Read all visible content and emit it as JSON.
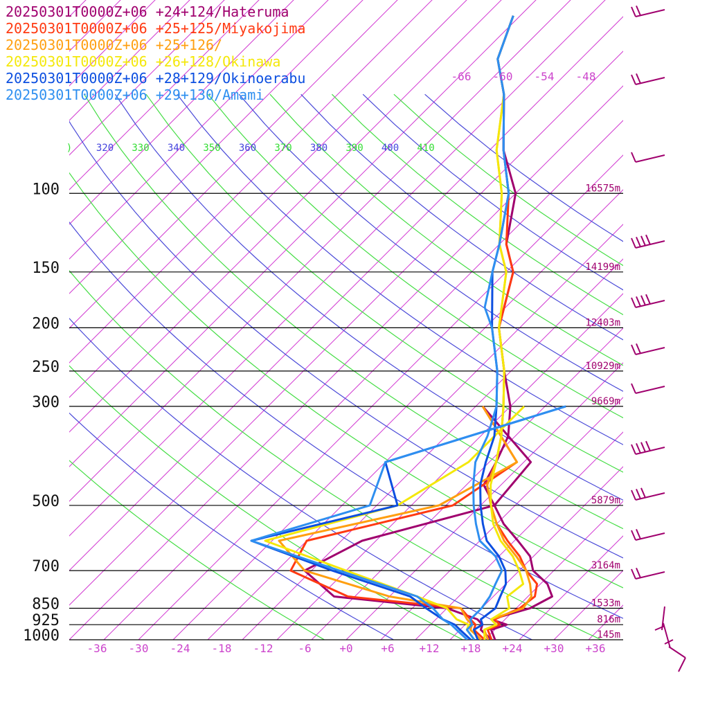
{
  "chart_data": {
    "type": "line",
    "legend": [
      {
        "label": "20250301T0000Z+06 +24+124/Hateruma",
        "color": "#a0006e"
      },
      {
        "label": "20250301T0000Z+06 +25+125/Miyakojima",
        "color": "#ff3a12"
      },
      {
        "label": "20250301T0000Z+06 +25+126/",
        "color": "#ff9f10"
      },
      {
        "label": "20250301T0000Z+06 +26+128/Okinawa",
        "color": "#f4e80a"
      },
      {
        "label": "20250301T0000Z+06 +28+129/Okinoerabu",
        "color": "#0c4fe0"
      },
      {
        "label": "20250301T0000Z+06 +29+130/Amami",
        "color": "#2e8ff0"
      }
    ],
    "pressure_levels": [
      {
        "p": 100,
        "label": "100",
        "height": "16575m"
      },
      {
        "p": 150,
        "label": "150",
        "height": "14199m"
      },
      {
        "p": 200,
        "label": "200",
        "height": "12403m"
      },
      {
        "p": 250,
        "label": "250",
        "height": "10929m"
      },
      {
        "p": 300,
        "label": "300",
        "height": "9669m"
      },
      {
        "p": 500,
        "label": "500",
        "height": "5879m"
      },
      {
        "p": 700,
        "label": "700",
        "height": "3164m"
      },
      {
        "p": 850,
        "label": "850",
        "height": "1533m"
      },
      {
        "p": 925,
        "label": "925",
        "height": "816m"
      },
      {
        "p": 1000,
        "label": "1000",
        "height": "145m"
      }
    ],
    "t_ticks": [
      "-36",
      "-30",
      "-24",
      "-18",
      "-12",
      "-6",
      "+0",
      "+6",
      "+12",
      "+18",
      "+24",
      "+30",
      "+36"
    ],
    "t_tick_values": [
      -36,
      -30,
      -24,
      -18,
      -12,
      -6,
      0,
      6,
      12,
      18,
      24,
      30,
      36
    ],
    "theta_labels": [
      {
        "text": ")",
        "color": "#33dd33"
      },
      {
        "text": "320",
        "color": "#4444dd"
      },
      {
        "text": "330",
        "color": "#33dd33"
      },
      {
        "text": "340",
        "color": "#4444dd"
      },
      {
        "text": "350",
        "color": "#33dd33"
      },
      {
        "text": "360",
        "color": "#4444dd"
      },
      {
        "text": "370",
        "color": "#33dd33"
      },
      {
        "text": "380",
        "color": "#4444dd"
      },
      {
        "text": "390",
        "color": "#33dd33"
      },
      {
        "text": "400",
        "color": "#4444dd"
      },
      {
        "text": "410",
        "color": "#33dd33"
      }
    ],
    "isotherm_upper_labels": [
      "-66",
      "-60",
      "-54",
      "-48"
    ],
    "xlim": [
      -40,
      40
    ],
    "ylim": [
      1000,
      100
    ],
    "series": [
      {
        "name": "20250301T0000Z+06 +24+124/Hateruma",
        "color": "#a0006e",
        "temperature": [
          [
            1000,
            21.5
          ],
          [
            950,
            19.5
          ],
          [
            925,
            21
          ],
          [
            900,
            18
          ],
          [
            850,
            22
          ],
          [
            800,
            23.5
          ],
          [
            750,
            21
          ],
          [
            700,
            17
          ],
          [
            650,
            14.5
          ],
          [
            600,
            10.5
          ],
          [
            550,
            6
          ],
          [
            500,
            2
          ],
          [
            450,
            -2.5
          ],
          [
            400,
            -4
          ],
          [
            350,
            -6
          ],
          [
            300,
            -10
          ],
          [
            250,
            -16
          ],
          [
            200,
            -23
          ],
          [
            150,
            -29
          ],
          [
            130,
            -34
          ],
          [
            100,
            -40
          ],
          [
            80,
            -48
          ],
          [
            60,
            -56
          ],
          [
            50,
            -62
          ],
          [
            40,
            -66
          ]
        ],
        "dewpoint": [
          [
            1000,
            21
          ],
          [
            950,
            18
          ],
          [
            925,
            17.5
          ],
          [
            900,
            16
          ],
          [
            850,
            10
          ],
          [
            800,
            -8
          ],
          [
            700,
            -16
          ],
          [
            600,
            -12
          ],
          [
            500,
            2
          ],
          [
            400,
            1
          ],
          [
            300,
            -14
          ]
        ]
      },
      {
        "name": "20250301T0000Z+06 +25+125/Miyakojima",
        "color": "#ff3a12",
        "temperature": [
          [
            1000,
            21
          ],
          [
            950,
            19
          ],
          [
            925,
            20
          ],
          [
            900,
            18.5
          ],
          [
            850,
            20.5
          ],
          [
            800,
            21
          ],
          [
            750,
            19.5
          ],
          [
            700,
            16
          ],
          [
            650,
            13
          ],
          [
            600,
            9
          ],
          [
            550,
            5
          ],
          [
            500,
            1.5
          ],
          [
            450,
            -2
          ],
          [
            400,
            -4
          ],
          [
            350,
            -7
          ],
          [
            300,
            -11
          ],
          [
            250,
            -16
          ],
          [
            200,
            -23
          ],
          [
            150,
            -29
          ],
          [
            130,
            -34
          ],
          [
            100,
            -41
          ],
          [
            80,
            -48
          ],
          [
            60,
            -56
          ],
          [
            50,
            -62
          ],
          [
            40,
            -66
          ]
        ],
        "dewpoint": [
          [
            1000,
            20
          ],
          [
            950,
            17
          ],
          [
            925,
            16.5
          ],
          [
            900,
            15
          ],
          [
            850,
            12
          ],
          [
            800,
            -6
          ],
          [
            700,
            -18
          ],
          [
            600,
            -20
          ],
          [
            500,
            -4
          ],
          [
            400,
            -1
          ],
          [
            300,
            -14
          ]
        ]
      },
      {
        "name": "20250301T0000Z+06 +25+126/",
        "color": "#ff9f10",
        "temperature": [
          [
            1000,
            20.5
          ],
          [
            950,
            18.5
          ],
          [
            925,
            19.5
          ],
          [
            900,
            18
          ],
          [
            850,
            21
          ],
          [
            800,
            20.5
          ],
          [
            750,
            18.5
          ],
          [
            700,
            16
          ],
          [
            650,
            12.5
          ],
          [
            600,
            8.5
          ],
          [
            550,
            5
          ],
          [
            500,
            1.5
          ],
          [
            450,
            -2
          ],
          [
            400,
            -4
          ],
          [
            350,
            -7
          ],
          [
            300,
            -11
          ],
          [
            250,
            -16
          ],
          [
            200,
            -23
          ],
          [
            150,
            -30
          ],
          [
            130,
            -35
          ],
          [
            100,
            -42
          ],
          [
            80,
            -49
          ],
          [
            60,
            -56
          ],
          [
            50,
            -62
          ],
          [
            40,
            -66
          ]
        ],
        "dewpoint": [
          [
            1000,
            19.5
          ],
          [
            950,
            16.5
          ],
          [
            925,
            16
          ],
          [
            900,
            14.5
          ],
          [
            850,
            12
          ],
          [
            800,
            0
          ],
          [
            700,
            -16
          ],
          [
            600,
            -24
          ],
          [
            500,
            -6
          ],
          [
            400,
            -1
          ],
          [
            300,
            -14
          ]
        ]
      },
      {
        "name": "20250301T0000Z+06 +26+128/Okinawa",
        "color": "#f4e80a",
        "temperature": [
          [
            1000,
            20
          ],
          [
            950,
            18.5
          ],
          [
            925,
            19.5
          ],
          [
            900,
            18
          ],
          [
            850,
            19
          ],
          [
            800,
            17
          ],
          [
            750,
            17.5
          ],
          [
            700,
            15
          ],
          [
            650,
            12
          ],
          [
            600,
            8
          ],
          [
            550,
            4.5
          ],
          [
            500,
            1.5
          ],
          [
            450,
            -1.5
          ],
          [
            400,
            -4
          ],
          [
            350,
            -7
          ],
          [
            300,
            -11
          ],
          [
            250,
            -16
          ],
          [
            200,
            -23
          ],
          [
            150,
            -30
          ],
          [
            130,
            -35
          ],
          [
            100,
            -42
          ],
          [
            80,
            -49
          ],
          [
            60,
            -56
          ],
          [
            50,
            -62
          ],
          [
            40,
            -66
          ]
        ],
        "dewpoint": [
          [
            1000,
            18.5
          ],
          [
            950,
            16
          ],
          [
            925,
            15.5
          ],
          [
            900,
            13
          ],
          [
            850,
            10
          ],
          [
            800,
            4
          ],
          [
            700,
            -10
          ],
          [
            600,
            -26
          ],
          [
            500,
            -12
          ],
          [
            400,
            -8
          ],
          [
            300,
            -8
          ]
        ]
      },
      {
        "name": "20250301T0000Z+06 +28+129/Okinoerabu",
        "color": "#0c4fe0",
        "temperature": [
          [
            1000,
            19
          ],
          [
            950,
            17
          ],
          [
            925,
            17.5
          ],
          [
            900,
            16.5
          ],
          [
            850,
            17
          ],
          [
            800,
            16
          ],
          [
            750,
            15
          ],
          [
            700,
            13
          ],
          [
            650,
            10
          ],
          [
            600,
            6
          ],
          [
            550,
            3
          ],
          [
            500,
            0
          ],
          [
            450,
            -3
          ],
          [
            400,
            -5.5
          ],
          [
            350,
            -8
          ],
          [
            300,
            -12
          ],
          [
            250,
            -17
          ],
          [
            200,
            -24
          ],
          [
            150,
            -32
          ],
          [
            130,
            -35
          ],
          [
            100,
            -41
          ],
          [
            80,
            -48
          ],
          [
            60,
            -56
          ],
          [
            50,
            -62
          ],
          [
            40,
            -66
          ]
        ],
        "dewpoint": [
          [
            1000,
            18
          ],
          [
            950,
            15
          ],
          [
            925,
            13.5
          ],
          [
            900,
            11
          ],
          [
            850,
            7
          ],
          [
            800,
            3
          ],
          [
            700,
            -12
          ],
          [
            600,
            -28
          ],
          [
            500,
            -12
          ],
          [
            400,
            -20
          ],
          [
            300,
            -2
          ]
        ]
      },
      {
        "name": "20250301T0000Z+06 +29+130/Amami",
        "color": "#2e8ff0",
        "temperature": [
          [
            1000,
            18.5
          ],
          [
            950,
            16
          ],
          [
            925,
            16
          ],
          [
            900,
            15
          ],
          [
            850,
            15
          ],
          [
            800,
            14.5
          ],
          [
            750,
            13.5
          ],
          [
            700,
            12.5
          ],
          [
            650,
            9.5
          ],
          [
            600,
            5
          ],
          [
            550,
            2
          ],
          [
            500,
            -1
          ],
          [
            450,
            -4
          ],
          [
            400,
            -7
          ],
          [
            350,
            -9
          ],
          [
            300,
            -12
          ],
          [
            250,
            -17
          ],
          [
            200,
            -24
          ],
          [
            180,
            -28
          ],
          [
            150,
            -32
          ],
          [
            130,
            -35
          ],
          [
            100,
            -41
          ],
          [
            80,
            -48
          ],
          [
            60,
            -56
          ],
          [
            50,
            -62
          ],
          [
            40,
            -66
          ]
        ],
        "dewpoint": [
          [
            1000,
            17.5
          ],
          [
            950,
            14.5
          ],
          [
            925,
            13
          ],
          [
            900,
            11
          ],
          [
            850,
            8
          ],
          [
            800,
            4
          ],
          [
            700,
            -11
          ],
          [
            600,
            -28
          ],
          [
            500,
            -16
          ],
          [
            400,
            -20
          ],
          [
            300,
            -2
          ]
        ]
      }
    ],
    "wind_color": "#a0006e"
  }
}
